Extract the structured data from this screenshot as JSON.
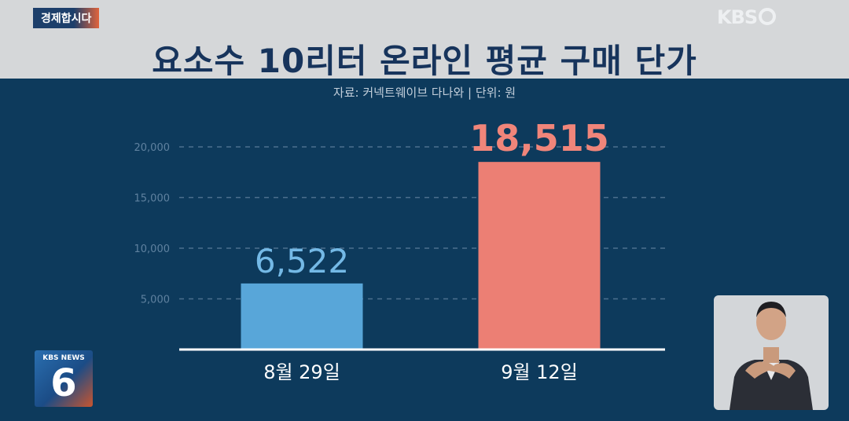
{
  "header": {
    "section_tag": "경제합시다",
    "channel_logo": "KBS",
    "title": "요소수 10리터 온라인 평균 구매 단가"
  },
  "source_line": "자료: 커넥트웨이브 다나와  |  단위: 원",
  "news_badge": {
    "label": "KBS NEWS",
    "number": "6"
  },
  "chart_data": {
    "type": "bar",
    "title": "요소수 10리터 온라인 평균 구매 단가",
    "unit": "원",
    "categories": [
      "8월 29일",
      "9월 12일"
    ],
    "values": [
      6522,
      18515
    ],
    "value_labels": [
      "6,522",
      "18,515"
    ],
    "bar_colors": [
      "#58a6d9",
      "#ec7f74"
    ],
    "label_colors": [
      "#74b9e6",
      "#f0857a"
    ],
    "yticks": [
      5000,
      10000,
      15000,
      20000
    ],
    "ytick_labels": [
      "5,000",
      "10,000",
      "15,000",
      "20,000"
    ],
    "ylim": [
      0,
      20000
    ],
    "grid": true,
    "legend": "none"
  },
  "colors": {
    "background": "#0d3a5c",
    "title_band": "#d5d7d9",
    "title_text": "#17345c",
    "grid": "#4d6f8e",
    "axis": "#ffffff",
    "tick_label": "#5f819f"
  }
}
